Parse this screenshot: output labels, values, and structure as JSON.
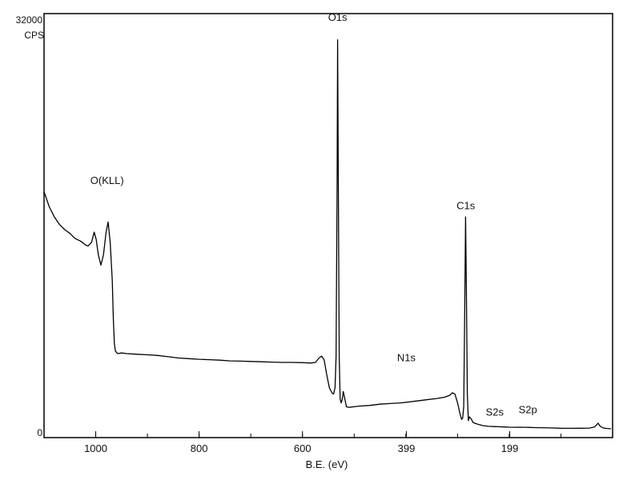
{
  "chart_data": {
    "type": "line",
    "title": "",
    "xlabel": "B.E. (eV)",
    "ylabel_top": "32000",
    "ylabel_unit": "CPS",
    "y_zero_label": "0",
    "xlim": [
      1100,
      0
    ],
    "ylim": [
      0,
      32000
    ],
    "x_reversed": true,
    "grid": false,
    "xticks": [
      {
        "value": 1000,
        "label": "1000"
      },
      {
        "value": 800,
        "label": "800"
      },
      {
        "value": 600,
        "label": "600"
      },
      {
        "value": 399,
        "label": "399"
      },
      {
        "value": 199,
        "label": "199"
      }
    ],
    "annotations": [
      {
        "text": "O1s",
        "x": 532,
        "y": 32500
      },
      {
        "text": "O(KLL)",
        "x": 978,
        "y": 19600
      },
      {
        "text": "C1s",
        "x": 284,
        "y": 17600
      },
      {
        "text": "N1s",
        "x": 399,
        "y": 5600
      },
      {
        "text": "S2s",
        "x": 228,
        "y": 1300
      },
      {
        "text": "S2p",
        "x": 164,
        "y": 1500
      }
    ],
    "series": [
      {
        "values": [
          [
            1100,
            19000
          ],
          [
            1090,
            17800
          ],
          [
            1080,
            17000
          ],
          [
            1070,
            16400
          ],
          [
            1060,
            16000
          ],
          [
            1050,
            15700
          ],
          [
            1040,
            15300
          ],
          [
            1030,
            15100
          ],
          [
            1020,
            14800
          ],
          [
            1015,
            14700
          ],
          [
            1008,
            15000
          ],
          [
            1003,
            15800
          ],
          [
            999,
            15200
          ],
          [
            995,
            14000
          ],
          [
            990,
            13200
          ],
          [
            985,
            14000
          ],
          [
            980,
            15800
          ],
          [
            976,
            16600
          ],
          [
            972,
            15000
          ],
          [
            968,
            12000
          ],
          [
            966,
            9000
          ],
          [
            964,
            7000
          ],
          [
            962,
            6400
          ],
          [
            958,
            6200
          ],
          [
            950,
            6250
          ],
          [
            940,
            6200
          ],
          [
            920,
            6150
          ],
          [
            900,
            6100
          ],
          [
            880,
            6050
          ],
          [
            860,
            5950
          ],
          [
            840,
            5850
          ],
          [
            820,
            5800
          ],
          [
            800,
            5750
          ],
          [
            780,
            5720
          ],
          [
            760,
            5680
          ],
          [
            740,
            5620
          ],
          [
            720,
            5600
          ],
          [
            700,
            5580
          ],
          [
            680,
            5550
          ],
          [
            660,
            5530
          ],
          [
            640,
            5500
          ],
          [
            620,
            5500
          ],
          [
            600,
            5480
          ],
          [
            585,
            5450
          ],
          [
            575,
            5500
          ],
          [
            568,
            5850
          ],
          [
            563,
            6000
          ],
          [
            558,
            5700
          ],
          [
            553,
            4500
          ],
          [
            548,
            3500
          ],
          [
            543,
            3100
          ],
          [
            540,
            3000
          ],
          [
            537,
            3500
          ],
          [
            535,
            6000
          ],
          [
            533,
            20000
          ],
          [
            532,
            31000
          ],
          [
            531,
            22000
          ],
          [
            529,
            6000
          ],
          [
            527,
            2600
          ],
          [
            525,
            2300
          ],
          [
            523,
            2600
          ],
          [
            521,
            3200
          ],
          [
            518,
            2600
          ],
          [
            515,
            2000
          ],
          [
            510,
            1950
          ],
          [
            500,
            2000
          ],
          [
            490,
            2050
          ],
          [
            470,
            2100
          ],
          [
            450,
            2200
          ],
          [
            430,
            2250
          ],
          [
            410,
            2300
          ],
          [
            399,
            2350
          ],
          [
            380,
            2450
          ],
          [
            360,
            2550
          ],
          [
            340,
            2650
          ],
          [
            325,
            2750
          ],
          [
            315,
            2900
          ],
          [
            310,
            3100
          ],
          [
            305,
            3000
          ],
          [
            300,
            2300
          ],
          [
            295,
            1400
          ],
          [
            292,
            1000
          ],
          [
            290,
            1100
          ],
          [
            288,
            2000
          ],
          [
            286,
            10000
          ],
          [
            284.5,
            17000
          ],
          [
            283,
            12000
          ],
          [
            281,
            3000
          ],
          [
            279,
            900
          ],
          [
            277,
            1200
          ],
          [
            275,
            1100
          ],
          [
            273,
            1000
          ],
          [
            270,
            750
          ],
          [
            260,
            600
          ],
          [
            250,
            500
          ],
          [
            240,
            450
          ],
          [
            230,
            430
          ],
          [
            220,
            420
          ],
          [
            210,
            400
          ],
          [
            200,
            380
          ],
          [
            190,
            370
          ],
          [
            180,
            380
          ],
          [
            170,
            370
          ],
          [
            160,
            360
          ],
          [
            150,
            350
          ],
          [
            140,
            340
          ],
          [
            120,
            320
          ],
          [
            100,
            300
          ],
          [
            80,
            290
          ],
          [
            60,
            300
          ],
          [
            45,
            310
          ],
          [
            35,
            400
          ],
          [
            30,
            600
          ],
          [
            28,
            700
          ],
          [
            25,
            500
          ],
          [
            20,
            350
          ],
          [
            15,
            300
          ],
          [
            10,
            280
          ],
          [
            3,
            260
          ]
        ]
      }
    ]
  }
}
